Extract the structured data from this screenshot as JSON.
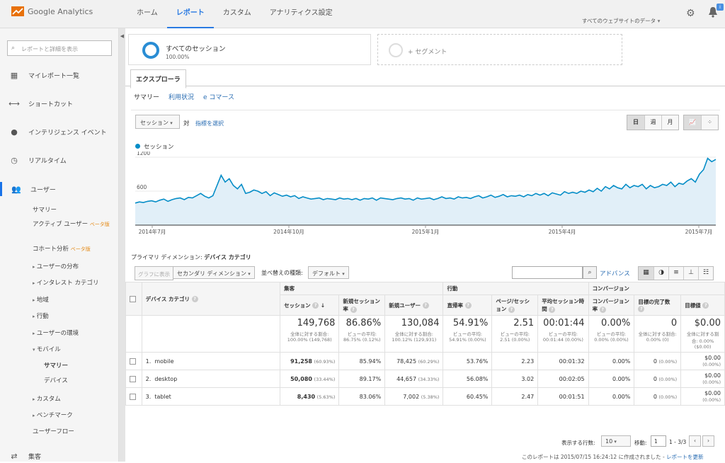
{
  "app": {
    "logo_text": "Google Analytics"
  },
  "top_nav": {
    "items": [
      "ホーム",
      "レポート",
      "カスタム",
      "アナリティクス設定"
    ],
    "account": "すべてのウェブサイトのデータ",
    "notification_count": "i"
  },
  "sidebar": {
    "search_placeholder": "レポートと詳細を表示",
    "items": [
      "マイレポート一覧",
      "ショートカット",
      "インテリジェンス イベント",
      "リアルタイム",
      "ユーザー"
    ],
    "sub": {
      "summary": "サマリー",
      "active_users": "アクティブ ユーザー",
      "active_beta": "ベータ版",
      "cohort": "コホート分析",
      "cohort_beta": "ベータ版",
      "distribution": "ユーザーの分布",
      "interest": "インタレスト カテゴリ",
      "geo": "地域",
      "behavior": "行動",
      "environment": "ユーザーの環境",
      "mobile": "モバイル",
      "mobile_summary": "サマリー",
      "devices": "デバイス",
      "custom": "カスタム",
      "benchmark": "ベンチマーク",
      "flow": "ユーザーフロー"
    },
    "acquisition": "集客"
  },
  "segments": {
    "primary_name": "すべてのセッション",
    "primary_pct": "100.00%",
    "add": "+ セグメント"
  },
  "tabs": {
    "explorer": "エクスプローラ",
    "sub": [
      "サマリー",
      "利用状況",
      "e コマース"
    ]
  },
  "chart_controls": {
    "metric": "セッション",
    "vs": "対",
    "select_metric": "指標を選択",
    "periods": [
      "日",
      "週",
      "月"
    ]
  },
  "chart_data": {
    "type": "line",
    "series": [
      {
        "name": "セッション",
        "values": [
          390,
          410,
          400,
          420,
          430,
          410,
          440,
          460,
          420,
          450,
          470,
          480,
          450,
          490,
          480,
          520,
          560,
          510,
          480,
          520,
          700,
          880,
          760,
          820,
          700,
          640,
          720,
          560,
          580,
          620,
          600,
          560,
          590,
          520,
          570,
          540,
          510,
          530,
          500,
          520,
          470,
          500,
          480,
          460,
          470,
          480,
          450,
          470,
          460,
          450,
          480,
          460,
          470,
          450,
          470,
          440,
          470,
          460,
          480,
          440,
          480,
          470,
          460,
          450,
          470,
          480,
          460,
          470,
          440,
          480,
          460,
          470,
          480,
          450,
          470,
          500,
          470,
          480,
          460,
          500,
          480,
          490,
          470,
          500,
          520,
          480,
          500,
          530,
          490,
          510,
          540,
          500,
          520,
          510,
          530,
          500,
          540,
          520,
          560,
          530,
          560,
          520,
          570,
          550,
          530,
          590,
          560,
          580,
          560,
          600,
          580,
          620,
          590,
          650,
          600,
          680,
          640,
          700,
          660,
          640,
          720,
          660,
          700,
          680,
          720,
          640,
          700,
          660,
          680,
          720,
          700,
          760,
          680,
          740,
          720,
          780,
          820,
          760,
          900,
          980,
          1180,
          1120,
          1160
        ]
      }
    ],
    "yticks": [
      1200,
      600
    ],
    "ylim": [
      0,
      1200
    ],
    "xlabels": [
      "2014年7月",
      "2014年10月",
      "2015年1月",
      "2015年4月",
      "2015年7月"
    ]
  },
  "dimension": {
    "label": "プライマリ ディメンション:",
    "value": "デバイス カテゴリ"
  },
  "table_tools": {
    "plot": "グラフに表示",
    "secondary": "セカンダリ ディメンション",
    "sort_label": "並べ替えの種類:",
    "sort_value": "デフォルト",
    "advanced": "アドバンス"
  },
  "table": {
    "groups": [
      "集客",
      "行動",
      "コンバージョン"
    ],
    "dim_header": "デバイス カテゴリ",
    "columns": [
      "セッション",
      "新規セッション率",
      "新規ユーザー",
      "直帰率",
      "ページ/セッション",
      "平均セッション時間",
      "コンバージョン率",
      "目標の完了数",
      "目標値"
    ],
    "totals": [
      {
        "v": "149,768",
        "s": "全体に対する割合: 100.00% (149,768)"
      },
      {
        "v": "86.86%",
        "s": "ビューの平均: 86.75% (0.12%)"
      },
      {
        "v": "130,084",
        "s": "全体に対する割合: 100.12% (129,931)"
      },
      {
        "v": "54.91%",
        "s": "ビューの平均: 54.91% (0.00%)"
      },
      {
        "v": "2.51",
        "s": "ビューの平均: 2.51 (0.00%)"
      },
      {
        "v": "00:01:44",
        "s": "ビューの平均: 00:01:44 (0.00%)"
      },
      {
        "v": "0.00%",
        "s": "ビューの平均: 0.00% (0.00%)"
      },
      {
        "v": "0",
        "s": "全体に対する割合: 0.00% (0)"
      },
      {
        "v": "$0.00",
        "s": "全体に対する割合: 0.00% ($0.00)"
      }
    ],
    "rows": [
      {
        "idx": "1.",
        "name": "mobile",
        "sessions": "91,258",
        "sp": "(60.93%)",
        "nsr": "85.94%",
        "nu": "78,425",
        "nup": "(60.29%)",
        "br": "53.76%",
        "pps": "2.23",
        "ast": "00:01:32",
        "cr": "0.00%",
        "gc": "0",
        "gcp": "(0.00%)",
        "gv": "$0.00",
        "gvp": "(0.00%)"
      },
      {
        "idx": "2.",
        "name": "desktop",
        "sessions": "50,080",
        "sp": "(33.44%)",
        "nsr": "89.17%",
        "nu": "44,657",
        "nup": "(34.33%)",
        "br": "56.08%",
        "pps": "3.02",
        "ast": "00:02:05",
        "cr": "0.00%",
        "gc": "0",
        "gcp": "(0.00%)",
        "gv": "$0.00",
        "gvp": "(0.00%)"
      },
      {
        "idx": "3.",
        "name": "tablet",
        "sessions": "8,430",
        "sp": "(5.63%)",
        "nsr": "83.06%",
        "nu": "7,002",
        "nup": "(5.38%)",
        "br": "60.45%",
        "pps": "2.47",
        "ast": "00:01:51",
        "cr": "0.00%",
        "gc": "0",
        "gcp": "(0.00%)",
        "gv": "$0.00",
        "gvp": "(0.00%)"
      }
    ]
  },
  "pagination": {
    "rows_label": "表示する行数:",
    "rows_value": "10",
    "goto_label": "移動:",
    "goto_value": "1",
    "range": "1 - 3/3"
  },
  "footer": {
    "note": "このレポートは 2015/07/15 16:24:12 に作成されました - ",
    "refresh": "レポートを更新"
  }
}
